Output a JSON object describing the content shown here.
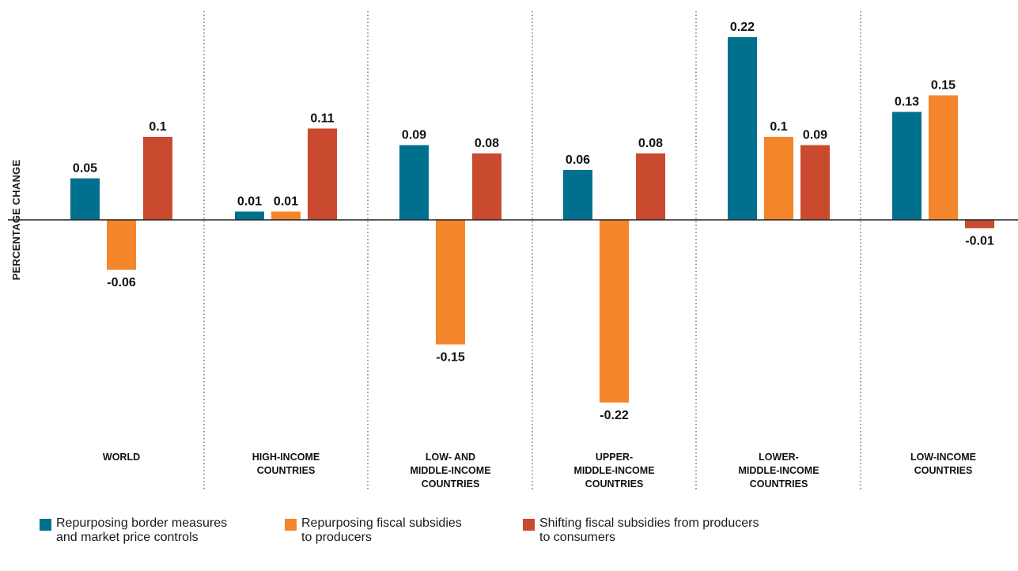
{
  "colors": {
    "series0": "#00708f",
    "series1": "#f4852a",
    "series2": "#c94a2e",
    "axis": "#222222",
    "divider": "#555555"
  },
  "chart_data": {
    "type": "bar",
    "ylabel": "PERCENTAGE CHANGE",
    "ylim": [
      -0.22,
      0.22
    ],
    "categories": [
      "WORLD",
      "HIGH-INCOME\nCOUNTRIES",
      "LOW- AND\nMIDDLE-INCOME\nCOUNTRIES",
      "UPPER-\nMIDDLE-INCOME\nCOUNTRIES",
      "LOWER-\nMIDDLE-INCOME\nCOUNTRIES",
      "LOW-INCOME\nCOUNTRIES"
    ],
    "series": [
      {
        "name": "Repurposing border measures\nand market price controls",
        "values": [
          0.05,
          0.01,
          0.09,
          0.06,
          0.22,
          0.13
        ]
      },
      {
        "name": "Repurposing fiscal subsidies\nto producers",
        "values": [
          -0.06,
          0.01,
          -0.15,
          -0.22,
          0.1,
          0.15
        ]
      },
      {
        "name": "Shifting fiscal subsidies from producers\nto consumers",
        "values": [
          0.1,
          0.11,
          0.08,
          0.08,
          0.09,
          -0.01
        ]
      }
    ],
    "value_labels": [
      [
        "0.05",
        "0.01",
        "0.09",
        "0.06",
        "0.22",
        "0.13"
      ],
      [
        "-0.06",
        "0.01",
        "-0.15",
        "-0.22",
        "0.1",
        "0.15"
      ],
      [
        "0.1",
        "0.11",
        "0.08",
        "0.08",
        "0.09",
        "-0.01"
      ]
    ],
    "grid": false,
    "legend_position": "bottom-left"
  }
}
